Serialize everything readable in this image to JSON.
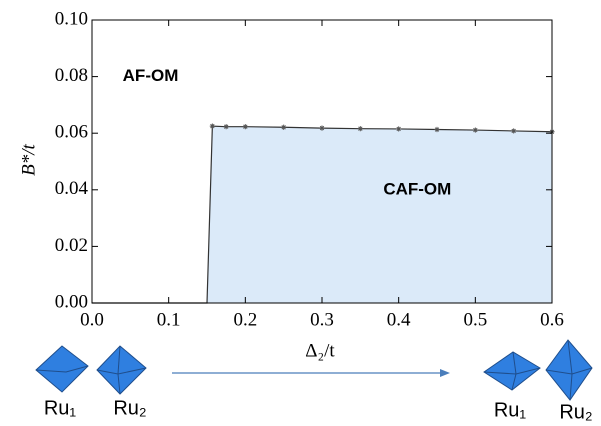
{
  "chart_data": {
    "type": "line",
    "xlabel": "Δ₂/t",
    "ylabel": "B*/t",
    "xlim": [
      0,
      0.6
    ],
    "ylim": [
      0,
      0.1
    ],
    "xticks": [
      {
        "value": 0,
        "label": "0.0"
      },
      0.1,
      0.2,
      0.3,
      0.4,
      0.5,
      0.6
    ],
    "yticks": [
      {
        "value": 0,
        "label": "0.00"
      },
      0.02,
      0.04,
      0.06,
      0.08,
      {
        "value": 0.1,
        "label": "0.10"
      }
    ],
    "series": [
      {
        "color": "#333333",
        "fill": "#dbeaf9",
        "x": [
          0,
          0.15,
          0.157,
          0.175,
          0.2,
          0.25,
          0.3,
          0.35,
          0.4,
          0.45,
          0.5,
          0.55,
          0.6
        ],
        "values": [
          0,
          0,
          0.0625,
          0.0623,
          0.0623,
          0.0621,
          0.0618,
          0.0616,
          0.0615,
          0.0613,
          0.0611,
          0.0608,
          0.0605
        ]
      },
      {
        "type": "scatter",
        "marker": "asterisk",
        "color": "#555555",
        "x": [
          0.157,
          0.175,
          0.2,
          0.25,
          0.3,
          0.35,
          0.4,
          0.45,
          0.5,
          0.55,
          0.6
        ],
        "values": [
          0.0625,
          0.0623,
          0.0623,
          0.0621,
          0.0618,
          0.0616,
          0.0615,
          0.0613,
          0.0611,
          0.0608,
          0.0605
        ]
      }
    ],
    "annotations": [
      {
        "text": "AF-OM",
        "x": 0.04,
        "y": 0.08
      },
      {
        "text": "CAF-OM",
        "x": 0.38,
        "y": 0.04
      }
    ],
    "structure_labels": [
      [
        "Ru₁",
        "Ru₂"
      ],
      [
        "Ru₁",
        "Ru₂"
      ]
    ]
  }
}
